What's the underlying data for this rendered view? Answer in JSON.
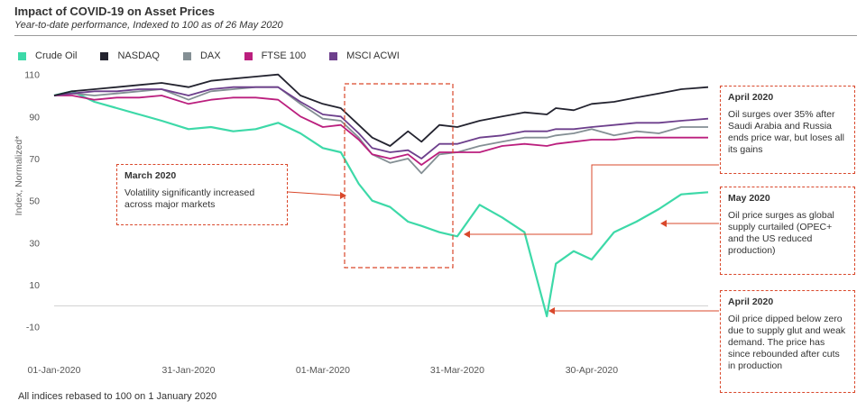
{
  "header": {
    "title": "Impact of COVID-19 on Asset Prices",
    "subtitle": "Year-to-date performance, Indexed to 100 as of 26 May 2020"
  },
  "footnote": "All indices rebased to 100 on 1 January  2020",
  "callouts": {
    "march": {
      "title": "March 2020",
      "body": "Volatility significantly increased across major markets"
    },
    "april_surge": {
      "title": "April 2020",
      "body": "Oil surges over 35%  after Saudi Arabia and Russia ends price war, but loses all its gains"
    },
    "may": {
      "title": "May 2020",
      "body": "Oil price surges as global supply curtailed (OPEC+ and the US reduced production)"
    },
    "april_dip": {
      "title": "April 2020",
      "body": "Oil price dipped below zero due to supply glut and weak demand. The price has since rebounded after cuts in production"
    }
  },
  "chart_data": {
    "type": "line",
    "title": "Impact of COVID-19 on Asset Prices",
    "subtitle": "Year-to-date performance, Indexed to 100 as of 26 May 2020",
    "xlabel": "",
    "ylabel": "Index, Normalized*",
    "x_tick_labels": [
      "01-Jan-2020",
      "31-Jan-2020",
      "01-Mar-2020",
      "31-Mar-2020",
      "30-Apr-2020"
    ],
    "y_ticks": [
      -10,
      10,
      30,
      50,
      70,
      90,
      110
    ],
    "y_tick_labels": [
      "-10",
      "10",
      "30",
      "50",
      "70",
      "90",
      "110"
    ],
    "ylim": [
      -14,
      112
    ],
    "x": [
      "2020-01-01",
      "2020-01-05",
      "2020-01-10",
      "2020-01-15",
      "2020-01-20",
      "2020-01-25",
      "2020-01-31",
      "2020-02-05",
      "2020-02-10",
      "2020-02-15",
      "2020-02-20",
      "2020-02-25",
      "2020-03-01",
      "2020-03-05",
      "2020-03-09",
      "2020-03-12",
      "2020-03-16",
      "2020-03-20",
      "2020-03-23",
      "2020-03-27",
      "2020-03-31",
      "2020-04-05",
      "2020-04-10",
      "2020-04-15",
      "2020-04-20",
      "2020-04-22",
      "2020-04-26",
      "2020-04-30",
      "2020-05-05",
      "2020-05-10",
      "2020-05-15",
      "2020-05-20",
      "2020-05-26"
    ],
    "legend_position": "top-left",
    "series": [
      {
        "name": "Crude Oil",
        "color": "#3dd9a8",
        "values": [
          100,
          102,
          97,
          94,
          91,
          88,
          84,
          85,
          83,
          84,
          87,
          82,
          75,
          73,
          58,
          50,
          47,
          40,
          38,
          35,
          33,
          48,
          42,
          35,
          -5,
          20,
          26,
          22,
          35,
          40,
          46,
          53,
          54
        ]
      },
      {
        "name": "NASDAQ",
        "color": "#23232f",
        "values": [
          100,
          102,
          103,
          104,
          105,
          106,
          104,
          107,
          108,
          109,
          110,
          100,
          96,
          94,
          86,
          80,
          76,
          83,
          78,
          86,
          85,
          88,
          90,
          92,
          91,
          94,
          93,
          96,
          97,
          99,
          101,
          103,
          104
        ]
      },
      {
        "name": "DAX",
        "color": "#848f94",
        "values": [
          100,
          101,
          100,
          101,
          102,
          103,
          98,
          102,
          103,
          104,
          104,
          96,
          89,
          88,
          80,
          72,
          68,
          70,
          63,
          72,
          73,
          76,
          78,
          80,
          80,
          81,
          82,
          84,
          81,
          83,
          82,
          85,
          85
        ]
      },
      {
        "name": "FTSE 100",
        "color": "#bb1f7e",
        "values": [
          100,
          100,
          98,
          99,
          99,
          100,
          96,
          98,
          99,
          99,
          98,
          90,
          85,
          86,
          79,
          72,
          70,
          72,
          67,
          73,
          73,
          73,
          76,
          77,
          76,
          77,
          78,
          79,
          79,
          80,
          80,
          80,
          80
        ]
      },
      {
        "name": "MSCI ACWI",
        "color": "#6d3f8c",
        "values": [
          100,
          101,
          102,
          102,
          103,
          103,
          100,
          103,
          104,
          104,
          104,
          97,
          91,
          90,
          82,
          75,
          73,
          74,
          70,
          77,
          77,
          80,
          81,
          83,
          83,
          84,
          84,
          85,
          86,
          87,
          87,
          88,
          89
        ]
      }
    ]
  }
}
